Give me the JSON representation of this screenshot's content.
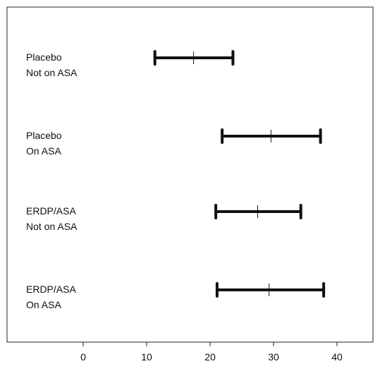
{
  "chart_data": {
    "type": "interval",
    "x": {
      "ticks": [
        0,
        10,
        20,
        30,
        40
      ],
      "tick_labels": [
        "0",
        "10",
        "20",
        "30",
        "40"
      ],
      "range": [
        -12,
        46.5
      ]
    },
    "rows": [
      {
        "label_lines": [
          "Placebo",
          "Not on ASA"
        ],
        "low": 11.3,
        "mid": 17.4,
        "high": 23.6
      },
      {
        "label_lines": [
          "Placebo",
          "On ASA"
        ],
        "low": 21.9,
        "mid": 29.6,
        "high": 37.4
      },
      {
        "label_lines": [
          "ERDP/ASA",
          "Not on ASA"
        ],
        "low": 20.9,
        "mid": 27.5,
        "high": 34.3
      },
      {
        "label_lines": [
          "ERDP/ASA",
          "On ASA"
        ],
        "low": 21.1,
        "mid": 29.3,
        "high": 37.9
      }
    ],
    "grid": false,
    "colors": {
      "interval": "#111111",
      "frame": "#222222",
      "text": "#111111"
    }
  }
}
